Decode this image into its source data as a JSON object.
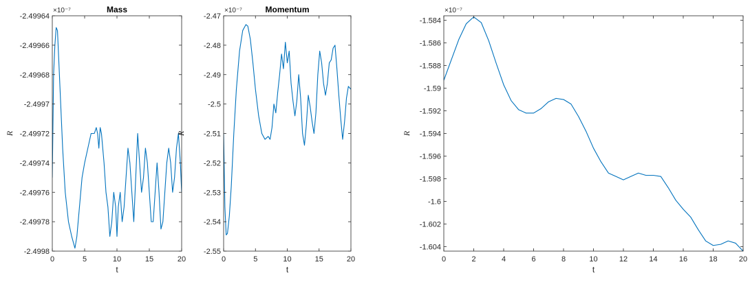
{
  "colors": {
    "line": "#0072bd",
    "axis": "#262626"
  },
  "chart_data": [
    {
      "type": "line",
      "title": "Mass",
      "xlabel": "t",
      "ylabel": "R",
      "exponent_label": "×10⁻⁷",
      "xlim": [
        0,
        20
      ],
      "ylim": [
        -2.4998,
        -2.49964
      ],
      "xticks": [
        0,
        5,
        10,
        15,
        20
      ],
      "xtick_labels": [
        "0",
        "5",
        "10",
        "15",
        "20"
      ],
      "yticks": [
        -2.4998,
        -2.49978,
        -2.49976,
        -2.49974,
        -2.49972,
        -2.4997,
        -2.49968,
        -2.49966,
        -2.49964
      ],
      "ytick_labels": [
        "-2.4998",
        "-2.49978",
        "-2.49976",
        "-2.49974",
        "-2.49972",
        "-2.4997",
        "-2.49968",
        "-2.49966",
        "-2.49964"
      ],
      "series": [
        {
          "x": [
            0,
            0.2,
            0.4,
            0.6,
            0.8,
            1.0,
            1.3,
            1.6,
            2.0,
            2.5,
            3.0,
            3.5,
            3.8,
            4.2,
            4.6,
            5.0,
            5.5,
            6.0,
            6.5,
            6.8,
            7.0,
            7.2,
            7.4,
            7.6,
            7.8,
            8.0,
            8.3,
            8.6,
            8.9,
            9.2,
            9.5,
            9.8,
            10.0,
            10.2,
            10.5,
            10.8,
            11.1,
            11.4,
            11.7,
            12.0,
            12.3,
            12.6,
            12.9,
            13.2,
            13.5,
            13.8,
            14.1,
            14.4,
            14.7,
            15.0,
            15.3,
            15.6,
            15.9,
            16.2,
            16.5,
            16.8,
            17.1,
            17.4,
            17.7,
            18.0,
            18.3,
            18.6,
            18.9,
            19.2,
            19.5,
            19.8,
            20.0
          ],
          "y": [
            -2.49975,
            -2.49968,
            -2.49966,
            -2.499648,
            -2.49965,
            -2.49967,
            -2.4997,
            -2.49973,
            -2.49976,
            -2.49978,
            -2.49979,
            -2.499798,
            -2.49979,
            -2.49977,
            -2.49975,
            -2.49974,
            -2.49973,
            -2.49972,
            -2.49972,
            -2.499716,
            -2.49972,
            -2.49973,
            -2.499716,
            -2.49972,
            -2.49973,
            -2.49974,
            -2.49976,
            -2.49977,
            -2.49979,
            -2.49978,
            -2.49976,
            -2.49977,
            -2.49979,
            -2.49977,
            -2.49976,
            -2.49978,
            -2.49977,
            -2.49975,
            -2.49973,
            -2.49974,
            -2.49976,
            -2.49978,
            -2.49975,
            -2.49972,
            -2.49974,
            -2.49976,
            -2.49975,
            -2.49973,
            -2.49974,
            -2.49976,
            -2.49978,
            -2.49978,
            -2.49976,
            -2.49974,
            -2.49976,
            -2.499785,
            -2.49978,
            -2.49976,
            -2.49974,
            -2.49973,
            -2.49974,
            -2.49976,
            -2.49975,
            -2.49973,
            -2.49972,
            -2.49974,
            -2.49976
          ]
        }
      ]
    },
    {
      "type": "line",
      "title": "Momentum",
      "xlabel": "t",
      "ylabel": "R",
      "exponent_label": "×10⁻⁷",
      "xlim": [
        0,
        20
      ],
      "ylim": [
        -2.55,
        -2.47
      ],
      "xticks": [
        0,
        5,
        10,
        15,
        20
      ],
      "xtick_labels": [
        "0",
        "5",
        "10",
        "15",
        "20"
      ],
      "yticks": [
        -2.55,
        -2.54,
        -2.53,
        -2.52,
        -2.51,
        -2.5,
        -2.49,
        -2.48,
        -2.47
      ],
      "ytick_labels": [
        "-2.55",
        "-2.54",
        "-2.53",
        "-2.52",
        "-2.51",
        "-2.5",
        "-2.49",
        "-2.48",
        "-2.47"
      ],
      "series": [
        {
          "x": [
            0,
            0.2,
            0.4,
            0.6,
            0.9,
            1.2,
            1.6,
            2.0,
            2.5,
            3.0,
            3.5,
            3.8,
            4.2,
            4.6,
            5.0,
            5.5,
            6.0,
            6.5,
            7.0,
            7.3,
            7.6,
            7.9,
            8.2,
            8.5,
            8.8,
            9.1,
            9.4,
            9.7,
            10.0,
            10.3,
            10.6,
            10.9,
            11.2,
            11.5,
            11.8,
            12.1,
            12.4,
            12.7,
            13.0,
            13.3,
            13.6,
            13.9,
            14.2,
            14.5,
            14.8,
            15.1,
            15.4,
            15.7,
            16.0,
            16.3,
            16.6,
            16.9,
            17.2,
            17.5,
            17.8,
            18.1,
            18.4,
            18.7,
            19.0,
            19.3,
            19.6,
            20.0
          ],
          "y": [
            -2.51,
            -2.535,
            -2.5445,
            -2.544,
            -2.538,
            -2.528,
            -2.51,
            -2.495,
            -2.482,
            -2.475,
            -2.473,
            -2.4735,
            -2.478,
            -2.486,
            -2.495,
            -2.504,
            -2.51,
            -2.512,
            -2.511,
            -2.512,
            -2.508,
            -2.5,
            -2.503,
            -2.496,
            -2.49,
            -2.483,
            -2.488,
            -2.479,
            -2.486,
            -2.482,
            -2.493,
            -2.499,
            -2.504,
            -2.499,
            -2.49,
            -2.498,
            -2.51,
            -2.514,
            -2.507,
            -2.497,
            -2.501,
            -2.506,
            -2.51,
            -2.503,
            -2.49,
            -2.482,
            -2.486,
            -2.493,
            -2.497,
            -2.493,
            -2.486,
            -2.485,
            -2.481,
            -2.48,
            -2.488,
            -2.497,
            -2.505,
            -2.512,
            -2.506,
            -2.498,
            -2.494,
            -2.495
          ]
        }
      ]
    },
    {
      "type": "line",
      "title": "",
      "xlabel": "t",
      "ylabel": "R",
      "exponent_label": "×10⁻⁷",
      "xlim": [
        0,
        20
      ],
      "ylim": [
        -1.6044,
        -1.5836
      ],
      "xticks": [
        0,
        2,
        4,
        6,
        8,
        10,
        12,
        14,
        16,
        18,
        20
      ],
      "xtick_labels": [
        "0",
        "2",
        "4",
        "6",
        "8",
        "10",
        "12",
        "14",
        "16",
        "18",
        "20"
      ],
      "yticks": [
        -1.604,
        -1.602,
        -1.6,
        -1.598,
        -1.596,
        -1.594,
        -1.592,
        -1.59,
        -1.588,
        -1.586,
        -1.584
      ],
      "ytick_labels": [
        "-1.604",
        "-1.602",
        "-1.6",
        "-1.598",
        "-1.596",
        "-1.594",
        "-1.592",
        "-1.59",
        "-1.588",
        "-1.586",
        "-1.584"
      ],
      "series": [
        {
          "x": [
            0,
            0.5,
            1.0,
            1.5,
            2.0,
            2.5,
            3.0,
            3.5,
            4.0,
            4.5,
            5.0,
            5.5,
            6.0,
            6.5,
            7.0,
            7.5,
            8.0,
            8.5,
            9.0,
            9.5,
            10.0,
            10.5,
            11.0,
            11.5,
            12.0,
            12.5,
            13.0,
            13.5,
            14.0,
            14.5,
            15.0,
            15.5,
            16.0,
            16.5,
            17.0,
            17.5,
            18.0,
            18.5,
            19.0,
            19.5,
            20.0
          ],
          "y": [
            -1.5893,
            -1.5875,
            -1.5857,
            -1.5843,
            -1.5837,
            -1.5842,
            -1.5858,
            -1.5878,
            -1.5897,
            -1.5911,
            -1.5919,
            -1.5922,
            -1.5922,
            -1.5918,
            -1.5912,
            -1.5909,
            -1.591,
            -1.5914,
            -1.5925,
            -1.5938,
            -1.5953,
            -1.5965,
            -1.5975,
            -1.5978,
            -1.5981,
            -1.5978,
            -1.5975,
            -1.5977,
            -1.5977,
            -1.5978,
            -1.5988,
            -1.5999,
            -1.6007,
            -1.6014,
            -1.6025,
            -1.6035,
            -1.6039,
            -1.6038,
            -1.6035,
            -1.6037,
            -1.6044
          ]
        }
      ]
    }
  ]
}
